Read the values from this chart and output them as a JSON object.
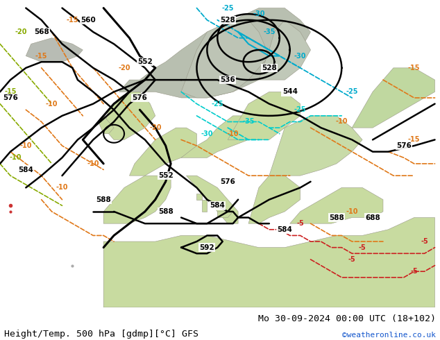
{
  "title_left": "Height/Temp. 500 hPa [gdmp][°C] GFS",
  "title_right": "Mo 30-09-2024 00:00 UTC (18+102)",
  "credit": "©weatheronline.co.uk",
  "sea_color": "#d2d8dc",
  "land_green_light": "#c8dba0",
  "land_green_dark": "#b0c888",
  "land_gray": "#b8bcb4",
  "geo_color": "#000000",
  "temp_blue": "#00aacc",
  "temp_cyan": "#00cccc",
  "temp_orange": "#e07818",
  "temp_red": "#cc2020",
  "temp_yellow_green": "#88aa00",
  "title_fontsize": 9.5,
  "credit_fontsize": 8,
  "credit_color": "#1155cc",
  "label_bg": "white"
}
